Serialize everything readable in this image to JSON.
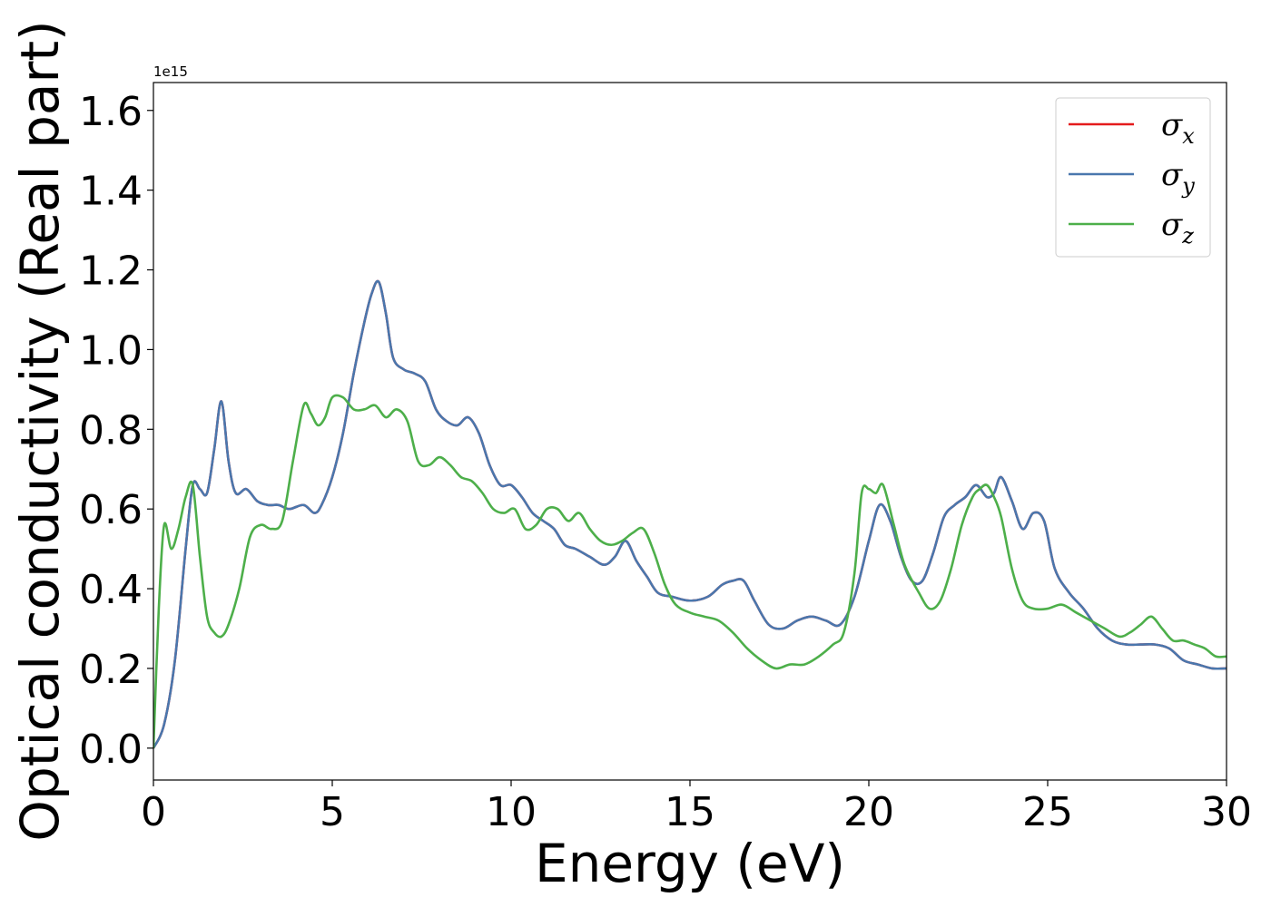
{
  "chart_data": {
    "type": "line",
    "xlabel": "Energy (eV)",
    "ylabel": "Optical conductivity (Real part)",
    "y_offset_label": "1e15",
    "xlim": [
      0,
      30
    ],
    "ylim": [
      -0.08,
      1.67
    ],
    "xticks": [
      0,
      5,
      10,
      15,
      20,
      25,
      30
    ],
    "yticks": [
      0.0,
      0.2,
      0.4,
      0.6,
      0.8,
      1.0,
      1.2,
      1.4,
      1.6
    ],
    "grid": false,
    "legend_position": "top-right",
    "series": [
      {
        "name": "σx",
        "legend_base": "σ",
        "legend_sub": "x",
        "color": "#e41a1c",
        "x": [
          0,
          0.3,
          0.6,
          0.9,
          1.1,
          1.3,
          1.5,
          1.7,
          1.9,
          2.1,
          2.3,
          2.6,
          2.9,
          3.2,
          3.5,
          3.8,
          4.2,
          4.5,
          4.7,
          5.0,
          5.3,
          5.6,
          5.9,
          6.1,
          6.3,
          6.5,
          6.7,
          7.0,
          7.3,
          7.6,
          7.9,
          8.2,
          8.5,
          8.8,
          9.1,
          9.4,
          9.7,
          10.0,
          10.3,
          10.6,
          10.9,
          11.2,
          11.5,
          11.8,
          12.2,
          12.6,
          12.9,
          13.2,
          13.5,
          13.8,
          14.1,
          14.5,
          15.0,
          15.5,
          15.9,
          16.2,
          16.5,
          16.8,
          17.2,
          17.6,
          18.0,
          18.4,
          18.8,
          19.2,
          19.6,
          20.0,
          20.3,
          20.6,
          20.9,
          21.2,
          21.5,
          21.8,
          22.1,
          22.4,
          22.7,
          23.0,
          23.3,
          23.5,
          23.7,
          24.0,
          24.3,
          24.6,
          24.9,
          25.2,
          25.6,
          26.0,
          26.4,
          26.8,
          27.2,
          27.6,
          28.0,
          28.4,
          28.8,
          29.2,
          29.6,
          30.0
        ],
        "y": [
          0.0,
          0.06,
          0.22,
          0.5,
          0.66,
          0.65,
          0.64,
          0.75,
          0.87,
          0.72,
          0.64,
          0.65,
          0.62,
          0.61,
          0.61,
          0.6,
          0.61,
          0.59,
          0.61,
          0.68,
          0.79,
          0.94,
          1.07,
          1.14,
          1.17,
          1.09,
          0.98,
          0.95,
          0.94,
          0.92,
          0.85,
          0.82,
          0.81,
          0.83,
          0.79,
          0.71,
          0.66,
          0.66,
          0.63,
          0.59,
          0.57,
          0.55,
          0.51,
          0.5,
          0.48,
          0.46,
          0.48,
          0.52,
          0.47,
          0.43,
          0.39,
          0.38,
          0.37,
          0.38,
          0.41,
          0.42,
          0.42,
          0.37,
          0.31,
          0.3,
          0.32,
          0.33,
          0.32,
          0.31,
          0.38,
          0.52,
          0.61,
          0.57,
          0.48,
          0.42,
          0.42,
          0.49,
          0.58,
          0.61,
          0.63,
          0.66,
          0.63,
          0.64,
          0.68,
          0.62,
          0.55,
          0.59,
          0.57,
          0.45,
          0.39,
          0.35,
          0.3,
          0.27,
          0.26,
          0.26,
          0.26,
          0.25,
          0.22,
          0.21,
          0.2,
          0.2
        ]
      },
      {
        "name": "σy",
        "legend_base": "σ",
        "legend_sub": "y",
        "color": "#4a77ad",
        "x": [
          0,
          0.3,
          0.6,
          0.9,
          1.1,
          1.3,
          1.5,
          1.7,
          1.9,
          2.1,
          2.3,
          2.6,
          2.9,
          3.2,
          3.5,
          3.8,
          4.2,
          4.5,
          4.7,
          5.0,
          5.3,
          5.6,
          5.9,
          6.1,
          6.3,
          6.5,
          6.7,
          7.0,
          7.3,
          7.6,
          7.9,
          8.2,
          8.5,
          8.8,
          9.1,
          9.4,
          9.7,
          10.0,
          10.3,
          10.6,
          10.9,
          11.2,
          11.5,
          11.8,
          12.2,
          12.6,
          12.9,
          13.2,
          13.5,
          13.8,
          14.1,
          14.5,
          15.0,
          15.5,
          15.9,
          16.2,
          16.5,
          16.8,
          17.2,
          17.6,
          18.0,
          18.4,
          18.8,
          19.2,
          19.6,
          20.0,
          20.3,
          20.6,
          20.9,
          21.2,
          21.5,
          21.8,
          22.1,
          22.4,
          22.7,
          23.0,
          23.3,
          23.5,
          23.7,
          24.0,
          24.3,
          24.6,
          24.9,
          25.2,
          25.6,
          26.0,
          26.4,
          26.8,
          27.2,
          27.6,
          28.0,
          28.4,
          28.8,
          29.2,
          29.6,
          30.0
        ],
        "y": [
          0.0,
          0.06,
          0.22,
          0.5,
          0.66,
          0.65,
          0.64,
          0.75,
          0.87,
          0.72,
          0.64,
          0.65,
          0.62,
          0.61,
          0.61,
          0.6,
          0.61,
          0.59,
          0.61,
          0.68,
          0.79,
          0.94,
          1.07,
          1.14,
          1.17,
          1.09,
          0.98,
          0.95,
          0.94,
          0.92,
          0.85,
          0.82,
          0.81,
          0.83,
          0.79,
          0.71,
          0.66,
          0.66,
          0.63,
          0.59,
          0.57,
          0.55,
          0.51,
          0.5,
          0.48,
          0.46,
          0.48,
          0.52,
          0.47,
          0.43,
          0.39,
          0.38,
          0.37,
          0.38,
          0.41,
          0.42,
          0.42,
          0.37,
          0.31,
          0.3,
          0.32,
          0.33,
          0.32,
          0.31,
          0.38,
          0.52,
          0.61,
          0.57,
          0.48,
          0.42,
          0.42,
          0.49,
          0.58,
          0.61,
          0.63,
          0.66,
          0.63,
          0.64,
          0.68,
          0.62,
          0.55,
          0.59,
          0.57,
          0.45,
          0.39,
          0.35,
          0.3,
          0.27,
          0.26,
          0.26,
          0.26,
          0.25,
          0.22,
          0.21,
          0.2,
          0.2
        ]
      },
      {
        "name": "σz",
        "legend_base": "σ",
        "legend_sub": "z",
        "color": "#4daf4a",
        "x": [
          0,
          0.15,
          0.3,
          0.5,
          0.7,
          0.9,
          1.1,
          1.3,
          1.5,
          1.7,
          1.9,
          2.1,
          2.4,
          2.7,
          3.0,
          3.3,
          3.6,
          3.9,
          4.2,
          4.4,
          4.6,
          4.8,
          5.0,
          5.3,
          5.6,
          5.9,
          6.2,
          6.5,
          6.8,
          7.1,
          7.4,
          7.7,
          8.0,
          8.3,
          8.6,
          8.9,
          9.2,
          9.5,
          9.8,
          10.1,
          10.4,
          10.7,
          11.0,
          11.3,
          11.6,
          11.9,
          12.2,
          12.5,
          12.8,
          13.1,
          13.4,
          13.7,
          14.0,
          14.3,
          14.6,
          15.0,
          15.4,
          15.8,
          16.2,
          16.6,
          17.0,
          17.4,
          17.8,
          18.2,
          18.6,
          19.0,
          19.3,
          19.6,
          19.8,
          20.0,
          20.2,
          20.4,
          20.7,
          21.0,
          21.4,
          21.7,
          22.0,
          22.3,
          22.6,
          22.9,
          23.1,
          23.3,
          23.5,
          23.7,
          24.0,
          24.3,
          24.6,
          25.0,
          25.4,
          25.8,
          26.2,
          26.6,
          27.0,
          27.3,
          27.6,
          27.9,
          28.2,
          28.5,
          28.8,
          29.1,
          29.4,
          29.7,
          30.0
        ],
        "y": [
          0.0,
          0.35,
          0.56,
          0.5,
          0.55,
          0.63,
          0.66,
          0.48,
          0.33,
          0.29,
          0.28,
          0.31,
          0.4,
          0.53,
          0.56,
          0.55,
          0.57,
          0.72,
          0.86,
          0.84,
          0.81,
          0.83,
          0.88,
          0.88,
          0.85,
          0.85,
          0.86,
          0.83,
          0.85,
          0.82,
          0.72,
          0.71,
          0.73,
          0.71,
          0.68,
          0.67,
          0.64,
          0.6,
          0.59,
          0.6,
          0.55,
          0.56,
          0.6,
          0.6,
          0.57,
          0.59,
          0.55,
          0.52,
          0.51,
          0.52,
          0.54,
          0.55,
          0.49,
          0.41,
          0.36,
          0.34,
          0.33,
          0.32,
          0.29,
          0.25,
          0.22,
          0.2,
          0.21,
          0.21,
          0.23,
          0.26,
          0.29,
          0.44,
          0.64,
          0.65,
          0.64,
          0.66,
          0.56,
          0.46,
          0.39,
          0.35,
          0.37,
          0.45,
          0.56,
          0.63,
          0.65,
          0.66,
          0.63,
          0.58,
          0.45,
          0.37,
          0.35,
          0.35,
          0.36,
          0.34,
          0.32,
          0.3,
          0.28,
          0.29,
          0.31,
          0.33,
          0.3,
          0.27,
          0.27,
          0.26,
          0.25,
          0.23,
          0.23
        ]
      }
    ]
  }
}
